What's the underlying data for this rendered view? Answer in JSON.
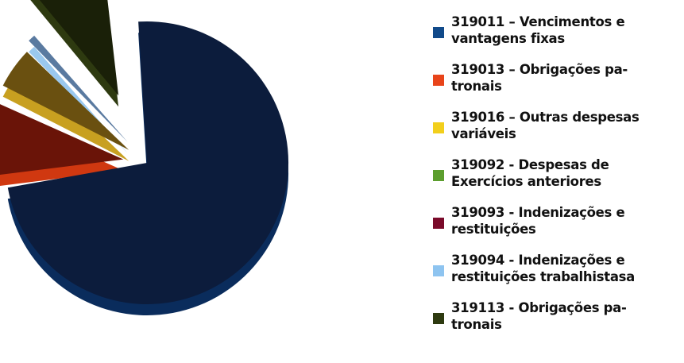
{
  "chart_data": {
    "type": "pie",
    "style": "3d-exploded",
    "legend_position": "right",
    "slices": [
      {
        "label": "319011 – Vencimentos e vantagens fixas",
        "value": 74.0,
        "color": "#0c1c3c",
        "side_color": "#0a2c5c"
      },
      {
        "label": "319013 – Obrigações pa-tronais",
        "value": 9.5,
        "color": "#6a1408",
        "side_color": "#d03810"
      },
      {
        "label": "319016 – Outras despesas variáveis",
        "value": 5.5,
        "color": "#6a5010",
        "side_color": "#c8a020"
      },
      {
        "label": "319092 - Despesas de Exercícios anteriores",
        "value": 0.0,
        "color": "#5a9a2a",
        "side_color": "#5a9a2a"
      },
      {
        "label": "319093 - Indenizações e restituições",
        "value": 0.0,
        "color": "#7a0a2a",
        "side_color": "#7a0a2a"
      },
      {
        "label": "319094 - Indenizações e restituições trabalhistasa",
        "value": 1.0,
        "color": "#5a7aa0",
        "side_color": "#9ac8ee"
      },
      {
        "label": "319113 - Obrigações pa-tronais",
        "value": 10.0,
        "color": "#1a2008",
        "side_color": "#2e3a10"
      }
    ]
  },
  "legend": {
    "items": [
      {
        "label_line1": "319011 – Vencimentos e",
        "label_line2": "vantagens fixas",
        "swatch_color": "#114a8a"
      },
      {
        "label_line1": "319013 – Obrigações pa-",
        "label_line2": "tronais",
        "swatch_color": "#e8441a"
      },
      {
        "label_line1": "319016 – Outras despesas",
        "label_line2": "variáveis",
        "swatch_color": "#f2cf1c"
      },
      {
        "label_line1": "319092 - Despesas de",
        "label_line2": "Exercícios anteriores",
        "swatch_color": "#5c9e2e"
      },
      {
        "label_line1": "319093 - Indenizações e",
        "label_line2": "restituições",
        "swatch_color": "#7a0a2a"
      },
      {
        "label_line1": "319094 - Indenizações e",
        "label_line2": "restituições trabalhistasa",
        "swatch_color": "#8ec4f0"
      },
      {
        "label_line1": "319113 - Obrigações pa-",
        "label_line2": "tronais",
        "swatch_color": "#2e3a10"
      }
    ]
  }
}
